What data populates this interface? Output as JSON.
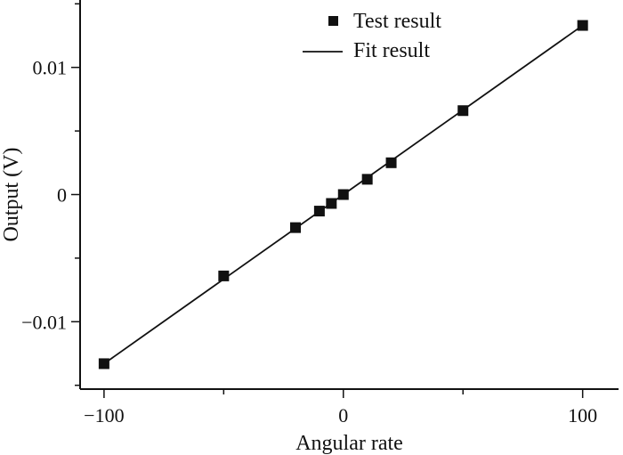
{
  "chart_data": {
    "type": "scatter",
    "title": "",
    "xlabel": "Angular rate",
    "ylabel": "Output (V)",
    "xlim": [
      -110,
      115
    ],
    "ylim": [
      -0.0153,
      0.0153
    ],
    "x_ticks": [
      {
        "value": -100,
        "label": "−100"
      },
      {
        "value": 0,
        "label": "0"
      },
      {
        "value": 100,
        "label": "100"
      }
    ],
    "y_ticks": [
      {
        "value": -0.01,
        "label": "−0.01"
      },
      {
        "value": 0,
        "label": "0"
      },
      {
        "value": 0.01,
        "label": "0.01"
      }
    ],
    "grid": false,
    "legend_position": "top-right",
    "series": [
      {
        "name": "Test result",
        "kind": "scatter",
        "marker": "square",
        "x": [
          -100,
          -50,
          -20,
          -10,
          -5,
          0,
          10,
          20,
          50,
          100
        ],
        "y": [
          -0.0133,
          -0.0064,
          -0.0026,
          -0.0013,
          -0.0007,
          0.0,
          0.0012,
          0.0025,
          0.0066,
          0.0133
        ]
      },
      {
        "name": "Fit result",
        "kind": "line",
        "x": [
          -100,
          100
        ],
        "y": [
          -0.0133,
          0.0133
        ]
      }
    ],
    "colors": {
      "axis": "#111111",
      "marker": "#111111",
      "line": "#111111"
    }
  }
}
